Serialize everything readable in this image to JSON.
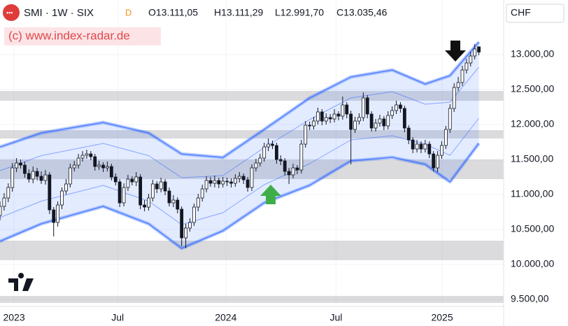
{
  "chart_data": {
    "type": "candlestick",
    "header": {
      "symbol": "SMI · 1W · SIX",
      "badge": "D",
      "ohlc": [
        "O13.111,05",
        "H13.111,29",
        "L12.991,70",
        "C13.035,46"
      ]
    },
    "watermark": "(c) www.index-radar.de",
    "currency": "CHF",
    "x": [
      0,
      1,
      2,
      3,
      4,
      5,
      6,
      7,
      8,
      9,
      10,
      11,
      12,
      13,
      14,
      15,
      16,
      17,
      18,
      19,
      20,
      21,
      22,
      23,
      24,
      25,
      26,
      27,
      28,
      29,
      30,
      31,
      32,
      33,
      34,
      35,
      36,
      37,
      38,
      39,
      40,
      41,
      42,
      43,
      44,
      45,
      46,
      47,
      48,
      49,
      50,
      51,
      52,
      53,
      54,
      55,
      56,
      57,
      58,
      59,
      60,
      61,
      62,
      63,
      64,
      65,
      66,
      67,
      68,
      69,
      70,
      71,
      72,
      73,
      74,
      75,
      76,
      77,
      78,
      79,
      80,
      81,
      82,
      83,
      84,
      85,
      86,
      87,
      88,
      89,
      90,
      91,
      92,
      93,
      94,
      95,
      96,
      97,
      98,
      99,
      100,
      101,
      102,
      103,
      104,
      105,
      106,
      107,
      108,
      109,
      110,
      111,
      112,
      113,
      114,
      115,
      116
    ],
    "open": [
      10700,
      10830,
      10950,
      11100,
      11380,
      11450,
      11420,
      11300,
      11220,
      11330,
      11260,
      11200,
      11280,
      10780,
      10600,
      10850,
      11050,
      11150,
      11380,
      11420,
      11520,
      11560,
      11580,
      11540,
      11400,
      11420,
      11380,
      11400,
      11250,
      11180,
      10880,
      11100,
      11220,
      11180,
      11250,
      10850,
      10820,
      10950,
      11150,
      11080,
      11180,
      11050,
      10880,
      10920,
      10790,
      10380,
      10520,
      10600,
      10820,
      10950,
      11080,
      11200,
      11160,
      11200,
      11150,
      11190,
      11180,
      11160,
      11230,
      11260,
      11210,
      11100,
      11380,
      11450,
      11520,
      11680,
      11720,
      11700,
      11500,
      11480,
      11330,
      11280,
      11380,
      11350,
      11720,
      11990,
      11980,
      12050,
      12180,
      12050,
      12100,
      12080,
      12150,
      12120,
      12280,
      12150,
      11930,
      12050,
      12100,
      12380,
      12150,
      11950,
      12020,
      12080,
      11980,
      12130,
      12200,
      12280,
      12230,
      11950,
      11780,
      11650,
      11720,
      11650,
      11720,
      11580,
      11380,
      11560,
      11700,
      11930,
      12230,
      12530,
      12600,
      12780,
      12880,
      12980,
      13111.05
    ],
    "high": [
      10900,
      11020,
      11160,
      11450,
      11520,
      11500,
      11470,
      11360,
      11400,
      11380,
      11330,
      11350,
      11320,
      10820,
      10900,
      11100,
      11220,
      11440,
      11480,
      11580,
      11620,
      11640,
      11620,
      11580,
      11480,
      11460,
      11470,
      11440,
      11300,
      11220,
      11160,
      11280,
      11260,
      11320,
      11290,
      10920,
      11010,
      11210,
      11190,
      11240,
      11220,
      11100,
      10990,
      10960,
      10830,
      10580,
      10660,
      10870,
      11010,
      11140,
      11260,
      11250,
      11270,
      11240,
      11250,
      11240,
      11230,
      11290,
      11320,
      11300,
      11250,
      11430,
      11510,
      11580,
      11740,
      11800,
      11770,
      11740,
      11560,
      11520,
      11380,
      11440,
      11420,
      11780,
      12050,
      12040,
      12110,
      12240,
      12220,
      12160,
      12150,
      12220,
      12190,
      12400,
      12320,
      12200,
      12110,
      12160,
      12460,
      12420,
      12190,
      12080,
      12140,
      12120,
      12190,
      12260,
      12340,
      12320,
      12270,
      11990,
      11820,
      11780,
      11760,
      11780,
      11760,
      11620,
      11620,
      11760,
      11980,
      12290,
      12590,
      12680,
      12840,
      12940,
      13040,
      13150,
      13111.29
    ],
    "low": [
      10630,
      10770,
      10890,
      11040,
      11320,
      11370,
      11240,
      11170,
      11160,
      11200,
      11150,
      11140,
      10720,
      10400,
      10540,
      10790,
      11000,
      11100,
      11330,
      11370,
      11470,
      11510,
      11490,
      11340,
      11350,
      11320,
      11330,
      11200,
      11130,
      10820,
      10830,
      11050,
      11130,
      11120,
      10790,
      10760,
      10770,
      10900,
      11020,
      11030,
      10990,
      10830,
      10820,
      10730,
      10260,
      10230,
      10470,
      10550,
      10760,
      10900,
      11030,
      11110,
      11100,
      11090,
      11100,
      11120,
      11100,
      11110,
      11170,
      11150,
      11040,
      11050,
      11330,
      11400,
      11470,
      11620,
      11650,
      11440,
      11420,
      11270,
      11150,
      11230,
      11290,
      11300,
      11670,
      11920,
      11930,
      12000,
      11990,
      12000,
      12020,
      12030,
      12060,
      12070,
      12090,
      11430,
      11880,
      12000,
      12050,
      12090,
      11900,
      11900,
      11970,
      11920,
      11930,
      12080,
      12150,
      12170,
      11890,
      11720,
      11590,
      11600,
      11590,
      11600,
      11520,
      11330,
      11320,
      11510,
      11650,
      11880,
      12180,
      12480,
      12550,
      12730,
      12830,
      12930,
      12991.7
    ],
    "close": [
      10830,
      10950,
      11100,
      11380,
      11450,
      11420,
      11300,
      11220,
      11330,
      11260,
      11200,
      11280,
      10780,
      10600,
      10850,
      11050,
      11150,
      11380,
      11420,
      11520,
      11560,
      11580,
      11540,
      11400,
      11420,
      11380,
      11400,
      11250,
      11180,
      10880,
      11100,
      11220,
      11180,
      11250,
      10850,
      10820,
      10950,
      11150,
      11080,
      11180,
      11050,
      10880,
      10920,
      10790,
      10380,
      10520,
      10600,
      10820,
      10950,
      11080,
      11200,
      11160,
      11200,
      11150,
      11190,
      11180,
      11160,
      11230,
      11260,
      11210,
      11100,
      11380,
      11450,
      11520,
      11680,
      11720,
      11700,
      11500,
      11480,
      11330,
      11280,
      11380,
      11350,
      11720,
      11990,
      11980,
      12050,
      12180,
      12050,
      12100,
      12080,
      12150,
      12120,
      12280,
      12150,
      11930,
      12050,
      12100,
      12380,
      12150,
      11950,
      12020,
      12080,
      11980,
      12130,
      12200,
      12280,
      12230,
      11950,
      11780,
      11650,
      11720,
      11650,
      11720,
      11580,
      11380,
      11560,
      11700,
      11930,
      12230,
      12530,
      12600,
      12780,
      12880,
      12980,
      13080,
      13035.46
    ],
    "bands": {
      "x": [
        0,
        10,
        25,
        36,
        44,
        54,
        64,
        75,
        85,
        95,
        103,
        109,
        116
      ],
      "upper": [
        11680,
        11880,
        12030,
        11880,
        11580,
        11530,
        11930,
        12380,
        12680,
        12780,
        12580,
        12700,
        13180
      ],
      "upper_inner": [
        11340,
        11555,
        11730,
        11555,
        11240,
        11270,
        11670,
        12070,
        12380,
        12470,
        12290,
        12320,
        12820
      ],
      "lower_inner": [
        10670,
        10905,
        11130,
        10905,
        10570,
        10740,
        11140,
        11440,
        11780,
        11840,
        11720,
        11560,
        12090
      ],
      "lower": [
        10330,
        10580,
        10830,
        10580,
        10230,
        10480,
        10880,
        11130,
        11480,
        11530,
        11430,
        11180,
        11730
      ],
      "color": "#2962ff"
    },
    "zones": [
      [
        12340,
        12480
      ],
      [
        11800,
        11920
      ],
      [
        11220,
        11500
      ],
      [
        10060,
        10340
      ],
      [
        9450,
        9550
      ]
    ],
    "xlim": [
      0,
      122
    ],
    "ylim": [
      9400,
      13780
    ],
    "xticks": [
      {
        "value": 3.4,
        "label": "2023"
      },
      {
        "value": 28.5,
        "label": "Jul"
      },
      {
        "value": 54.7,
        "label": "2024"
      },
      {
        "value": 81.4,
        "label": "Jul"
      },
      {
        "value": 107.1,
        "label": "2025"
      }
    ],
    "yticks": [
      {
        "value": 9500,
        "label": "9.500,00"
      },
      {
        "value": 10000,
        "label": "10.000,00"
      },
      {
        "value": 10500,
        "label": "10.500,00"
      },
      {
        "value": 11000,
        "label": "11.000,00"
      },
      {
        "value": 11500,
        "label": "11.500,00"
      },
      {
        "value": 12000,
        "label": "12.000,00"
      },
      {
        "value": 12500,
        "label": "12.500,00"
      },
      {
        "value": 13000,
        "label": "13.000,00"
      }
    ],
    "grid": true
  }
}
